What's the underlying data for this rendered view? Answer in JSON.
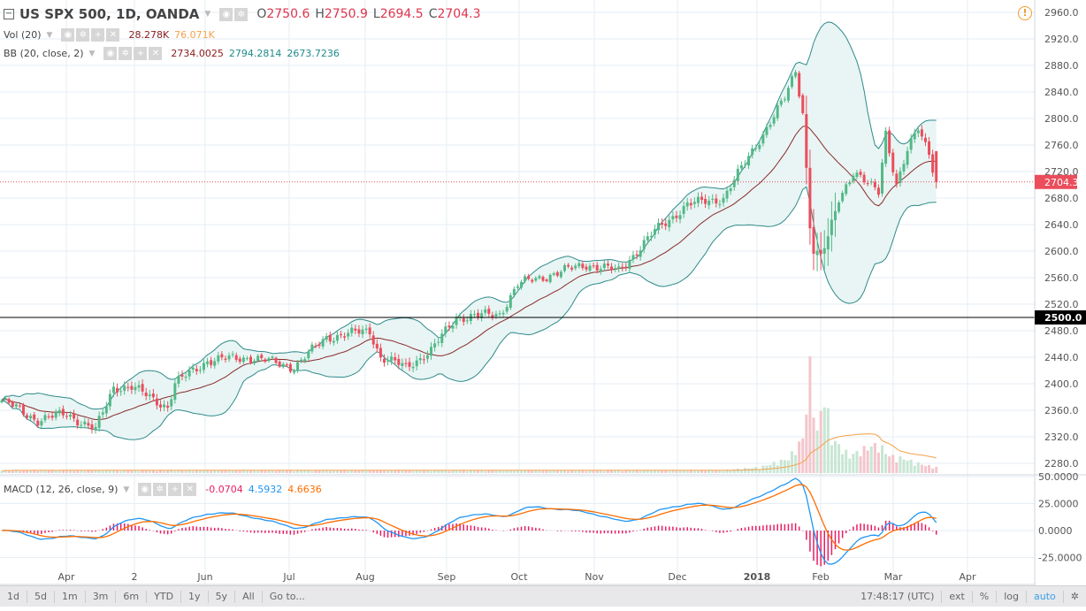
{
  "header": {
    "symbol": "US SPX 500, 1D, OANDA",
    "o_label": "O",
    "o": "2750.6",
    "h_label": "H",
    "h": "2750.9",
    "l_label": "L",
    "l": "2694.5",
    "c_label": "C",
    "c": "2704.3"
  },
  "vol": {
    "label": "Vol (20)",
    "v1": "28.278K",
    "v2": "76.071K"
  },
  "bb": {
    "label": "BB (20, close, 2)",
    "mid": "2734.0025",
    "upper": "2794.2814",
    "lower": "2673.7236"
  },
  "macd": {
    "label": "MACD (12, 26, close, 9)",
    "hist": "-0.0704",
    "macd": "4.5932",
    "signal": "4.6636"
  },
  "price_axis": {
    "ticks": [
      "2960.0",
      "2920.0",
      "2880.0",
      "2840.0",
      "2800.0",
      "2760.0",
      "2720.0",
      "2680.0",
      "2640.0",
      "2600.0",
      "2560.0",
      "2520.0",
      "2480.0",
      "2440.0",
      "2400.0",
      "2360.0",
      "2320.0",
      "2280.0"
    ],
    "current": "2704.3",
    "level": "2500.0"
  },
  "macd_axis": {
    "ticks": [
      "50.0000",
      "25.0000",
      "0.0000",
      "-25.0000"
    ]
  },
  "time_axis": [
    "Apr",
    "2",
    "Jun",
    "Jul",
    "Aug",
    "Sep",
    "Oct",
    "Nov",
    "Dec",
    "2018",
    "Feb",
    "Mar",
    "Apr"
  ],
  "bottom": {
    "ranges": [
      "1d",
      "5d",
      "1m",
      "3m",
      "6m",
      "YTD",
      "1y",
      "5y",
      "All"
    ],
    "goto": "Go to...",
    "time": "17:48:17 (UTC)",
    "ext": "ext",
    "pct": "%",
    "log": "log",
    "auto": "auto"
  },
  "colors": {
    "up": "#53b987",
    "down": "#eb4d5c",
    "bb_band": "#2f8a8a",
    "bb_mid": "#8b2a2a",
    "bb_fill": "#e8f5f4",
    "macd": "#2196f3",
    "signal": "#ff6d00",
    "hist": "#e91e63"
  },
  "chart_data": {
    "type": "candlestick",
    "title": "US SPX 500, 1D, OANDA",
    "close_anchors": [
      [
        0,
        2375
      ],
      [
        10,
        2345
      ],
      [
        18,
        2355
      ],
      [
        26,
        2330
      ],
      [
        31,
        2395
      ],
      [
        36,
        2395
      ],
      [
        46,
        2365
      ],
      [
        48,
        2400
      ],
      [
        57,
        2435
      ],
      [
        69,
        2440
      ],
      [
        81,
        2425
      ],
      [
        90,
        2470
      ],
      [
        102,
        2480
      ],
      [
        105,
        2440
      ],
      [
        112,
        2425
      ],
      [
        119,
        2450
      ],
      [
        126,
        2500
      ],
      [
        138,
        2505
      ],
      [
        143,
        2550
      ],
      [
        162,
        2580
      ],
      [
        171,
        2570
      ],
      [
        181,
        2630
      ],
      [
        190,
        2670
      ],
      [
        200,
        2680
      ],
      [
        209,
        2760
      ],
      [
        217,
        2830
      ],
      [
        220,
        2872
      ],
      [
        222,
        2810
      ],
      [
        224,
        2640
      ],
      [
        225,
        2600
      ],
      [
        227,
        2590
      ],
      [
        229,
        2620
      ],
      [
        232,
        2680
      ],
      [
        236,
        2720
      ],
      [
        240,
        2700
      ],
      [
        243,
        2690
      ],
      [
        245,
        2780
      ],
      [
        248,
        2700
      ],
      [
        251,
        2750
      ],
      [
        254,
        2785
      ],
      [
        257,
        2750
      ],
      [
        259,
        2704
      ]
    ],
    "volume_anchors_k": [
      [
        0,
        5
      ],
      [
        200,
        5
      ],
      [
        210,
        10
      ],
      [
        218,
        25
      ],
      [
        222,
        60
      ],
      [
        224,
        180
      ],
      [
        226,
        70
      ],
      [
        228,
        140
      ],
      [
        230,
        60
      ],
      [
        235,
        30
      ],
      [
        240,
        45
      ],
      [
        243,
        50
      ],
      [
        246,
        30
      ],
      [
        250,
        25
      ],
      [
        255,
        15
      ],
      [
        259,
        10
      ]
    ]
  }
}
